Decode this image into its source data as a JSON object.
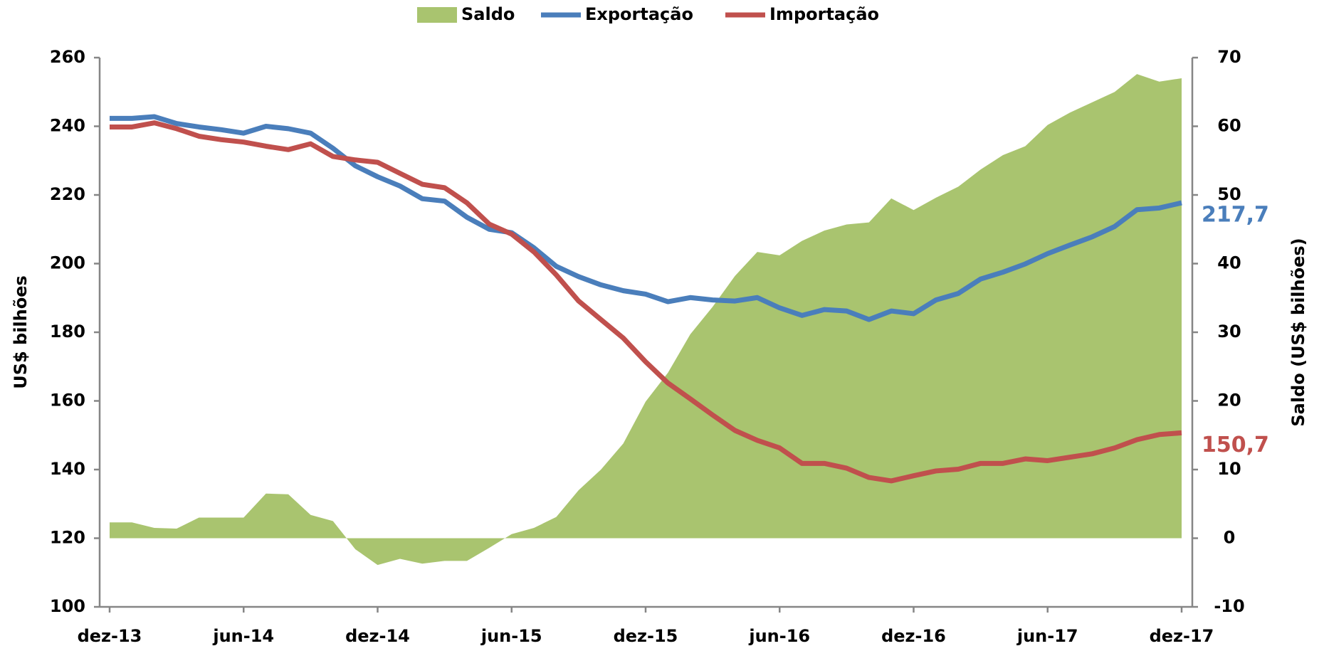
{
  "chart_data": {
    "type": "line",
    "x": [
      "dez-13",
      null,
      null,
      null,
      null,
      null,
      "jun-14",
      null,
      null,
      null,
      null,
      null,
      "dez-14",
      null,
      null,
      null,
      null,
      null,
      "jun-15",
      null,
      null,
      null,
      null,
      null,
      "dez-15",
      null,
      null,
      null,
      null,
      null,
      "jun-16",
      null,
      null,
      null,
      null,
      null,
      "dez-16",
      null,
      null,
      null,
      null,
      null,
      "jun-17",
      null,
      null,
      null,
      null,
      null,
      "dez-17"
    ],
    "ylabel": "US$ bilhões",
    "y2label": "Saldo (US$ bilhões)",
    "ylim": [
      100,
      260
    ],
    "yticks": [
      100,
      120,
      140,
      160,
      180,
      200,
      220,
      240,
      260
    ],
    "y2lim": [
      -10,
      70
    ],
    "y2ticks": [
      -10,
      0,
      10,
      20,
      30,
      40,
      50,
      60,
      70
    ],
    "series": [
      {
        "name": "Saldo",
        "color": "#a9c46f",
        "type": "area",
        "axis": "y2",
        "values": [
          2.3,
          2.3,
          1.5,
          1.4,
          3.0,
          3.0,
          3.0,
          6.5,
          6.4,
          3.4,
          2.5,
          -1.6,
          -3.9,
          -3.0,
          -3.7,
          -3.3,
          -3.3,
          -1.4,
          0.6,
          1.5,
          3.1,
          7.0,
          10.0,
          13.8,
          19.9,
          24.1,
          29.7,
          33.7,
          38.2,
          41.7,
          41.2,
          43.3,
          44.8,
          45.7,
          46.0,
          49.5,
          47.8,
          49.6,
          51.2,
          53.7,
          55.8,
          57.1,
          60.2,
          62.0,
          63.5,
          65.0,
          67.6,
          66.5,
          67.0
        ]
      },
      {
        "name": "Exportação",
        "color": "#4a7ebb",
        "type": "line",
        "values": [
          242.3,
          242.3,
          242.8,
          240.8,
          239.8,
          239.0,
          238.0,
          240.0,
          239.3,
          238.0,
          233.6,
          228.5,
          225.3,
          222.6,
          218.9,
          218.2,
          213.5,
          210.0,
          209.0,
          204.6,
          199.2,
          196.2,
          193.8,
          192.1,
          191.1,
          188.9,
          190.1,
          189.4,
          189.1,
          190.1,
          187.1,
          184.9,
          186.6,
          186.2,
          183.7,
          186.2,
          185.4,
          189.4,
          191.3,
          195.5,
          197.5,
          199.9,
          202.9,
          205.4,
          207.8,
          210.8,
          215.7,
          216.2,
          217.7
        ],
        "value_labels": [
          null,
          null,
          null,
          null,
          null,
          null,
          null,
          null,
          null,
          null,
          null,
          null,
          null,
          null,
          null,
          null,
          null,
          null,
          null,
          null,
          null,
          null,
          null,
          null,
          null,
          null,
          null,
          null,
          null,
          null,
          null,
          null,
          null,
          null,
          null,
          null,
          null,
          null,
          null,
          null,
          null,
          null,
          null,
          null,
          null,
          null,
          null,
          null,
          "217,7"
        ]
      },
      {
        "name": "Importação",
        "color": "#c0504d",
        "type": "line",
        "values": [
          239.8,
          239.8,
          241.0,
          239.3,
          237.1,
          236.1,
          235.4,
          234.2,
          233.2,
          234.9,
          231.2,
          230.2,
          229.5,
          226.3,
          223.1,
          222.1,
          217.7,
          211.5,
          208.6,
          203.4,
          196.7,
          189.1,
          183.7,
          178.3,
          171.4,
          165.2,
          160.6,
          155.9,
          151.4,
          148.5,
          146.3,
          141.8,
          141.8,
          140.4,
          137.7,
          136.7,
          138.2,
          139.6,
          140.1,
          141.8,
          141.8,
          143.1,
          142.6,
          143.6,
          144.6,
          146.3,
          148.7,
          150.2,
          150.7
        ],
        "value_labels": [
          null,
          null,
          null,
          null,
          null,
          null,
          null,
          null,
          null,
          null,
          null,
          null,
          null,
          null,
          null,
          null,
          null,
          null,
          null,
          null,
          null,
          null,
          null,
          null,
          null,
          null,
          null,
          null,
          null,
          null,
          null,
          null,
          null,
          null,
          null,
          null,
          null,
          null,
          null,
          null,
          null,
          null,
          null,
          null,
          null,
          null,
          null,
          null,
          "150,7"
        ]
      }
    ]
  }
}
